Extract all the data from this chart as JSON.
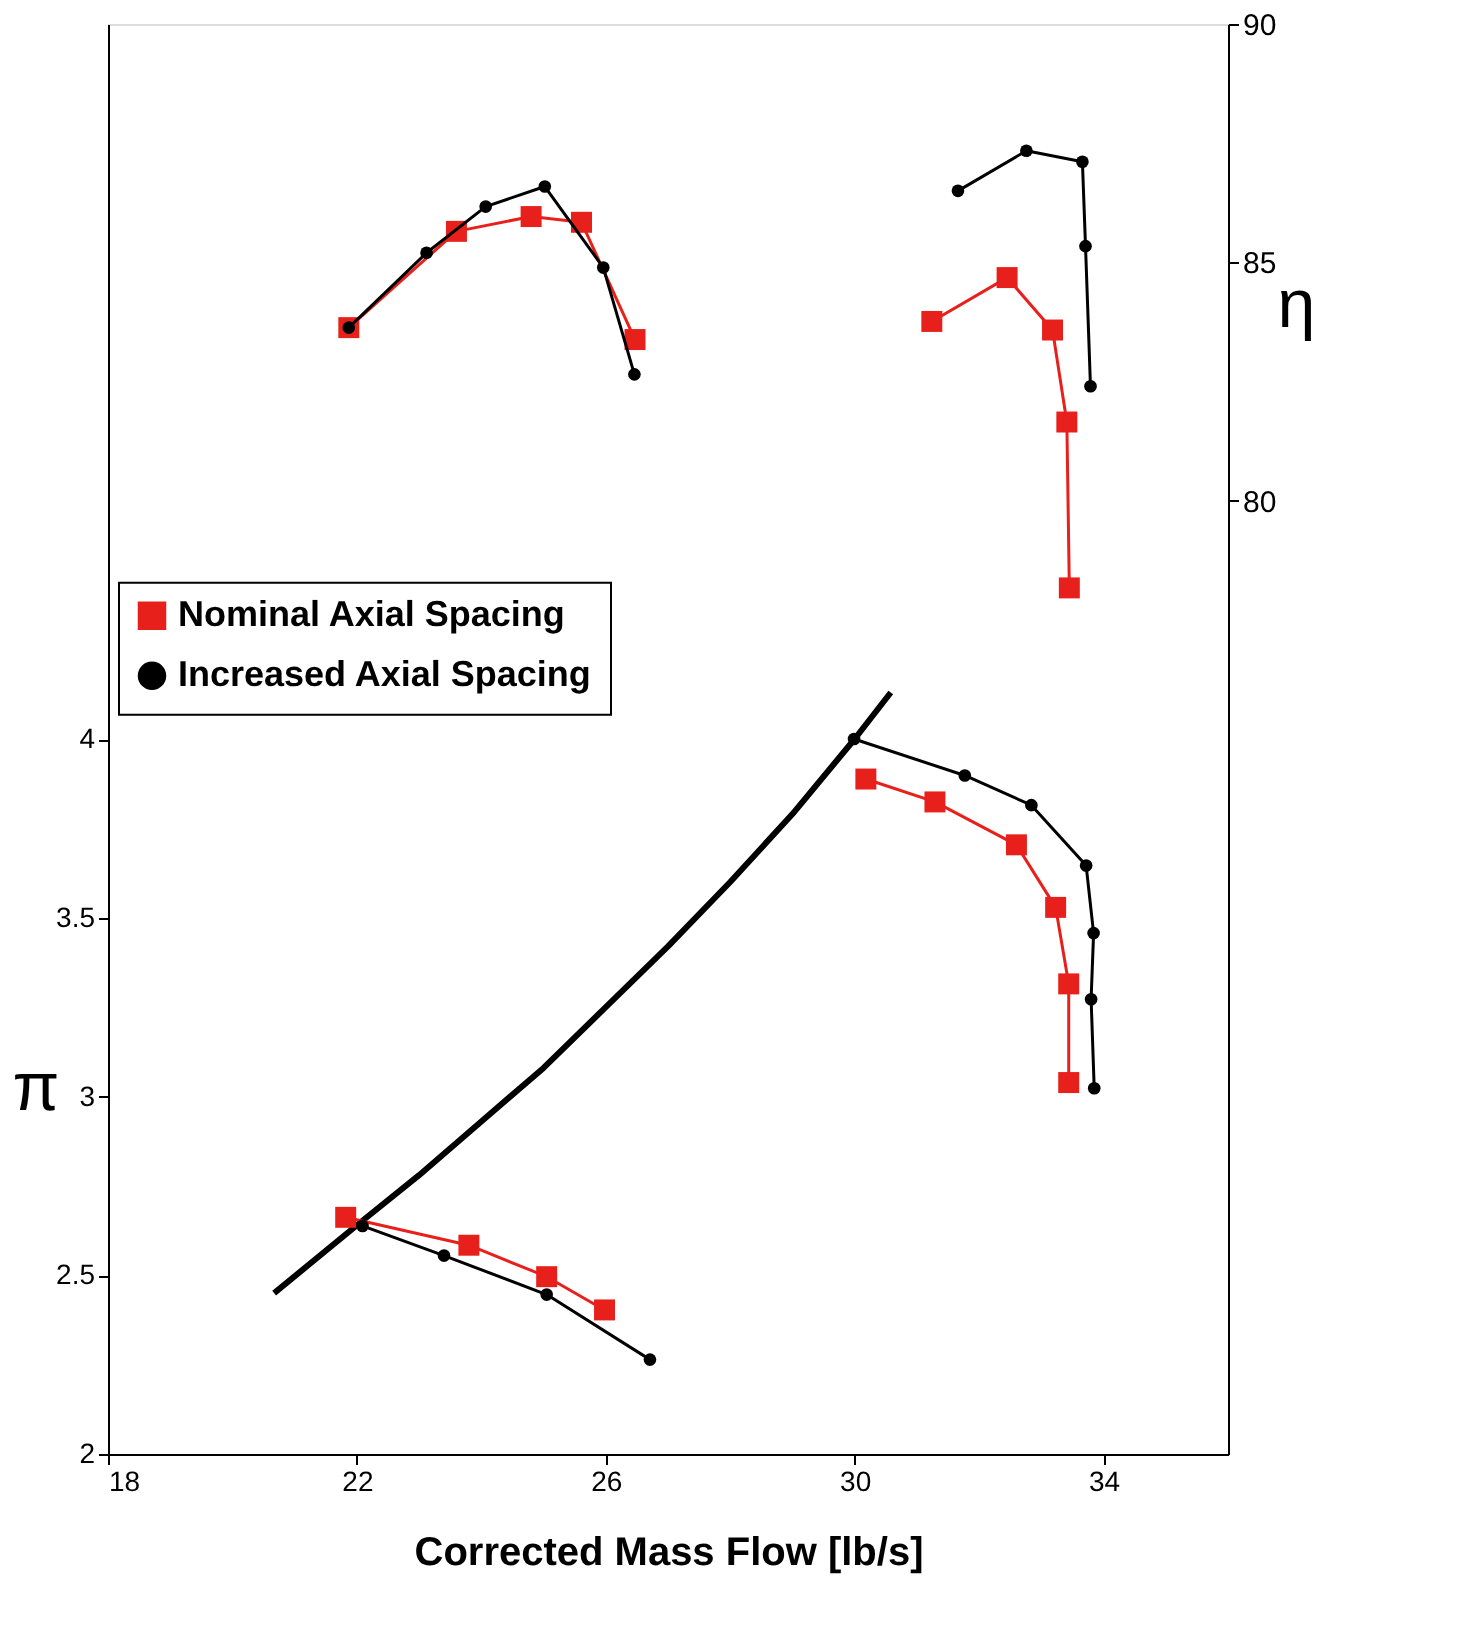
{
  "chart_data": {
    "type": "line",
    "xlabel": "Corrected Mass Flow [lb/s]",
    "ylabel": "π",
    "y2label": "η",
    "xlim": [
      18,
      36
    ],
    "xticks": [
      18,
      22,
      26,
      30,
      34
    ],
    "ylim": [
      2,
      6
    ],
    "yticks": [
      2,
      2.5,
      3,
      3.5,
      4
    ],
    "y2lim": [
      60,
      90
    ],
    "y2ticks": [
      80,
      85,
      90
    ],
    "grid": false,
    "legend": "left",
    "series": [
      {
        "name": "Nominal Axial Spacing",
        "color": "#e8201c",
        "marker": "square",
        "x": [
          21.82,
          23.8,
          25.05,
          25.98
        ],
        "values": [
          2.662,
          2.584,
          2.496,
          2.403
        ]
      },
      {
        "color": "#e8201c",
        "marker": "square",
        "x": [
          30.18,
          31.29,
          32.6,
          33.23,
          33.44,
          33.44
        ],
        "values": [
          3.888,
          3.824,
          3.704,
          3.529,
          3.315,
          3.039
        ]
      },
      {
        "name": "Increased Axial Spacing",
        "color": "#000000",
        "marker": "circle",
        "x": [
          22.09,
          23.4,
          25.05,
          26.71
        ],
        "values": [
          2.638,
          2.555,
          2.446,
          2.264
        ]
      },
      {
        "color": "#000000",
        "marker": "circle",
        "x": [
          29.99,
          31.77,
          32.84,
          33.72,
          33.84,
          33.8,
          33.85
        ],
        "values": [
          4.0,
          3.898,
          3.815,
          3.646,
          3.457,
          3.272,
          3.023
        ]
      },
      {
        "color": "#e8201c",
        "marker": "square",
        "axis": "y2",
        "x": [
          21.87,
          23.6,
          24.8,
          25.61,
          26.47
        ],
        "values": [
          83.63,
          85.65,
          85.96,
          85.84,
          83.38
        ]
      },
      {
        "color": "#e8201c",
        "marker": "square",
        "axis": "y2",
        "x": [
          31.24,
          32.45,
          33.18,
          33.41,
          33.45
        ],
        "values": [
          83.76,
          84.68,
          83.58,
          81.65,
          78.17
        ]
      },
      {
        "color": "#000000",
        "marker": "circle",
        "axis": "y2",
        "x": [
          21.87,
          23.12,
          24.07,
          25.02,
          25.96,
          26.46
        ],
        "values": [
          83.63,
          85.2,
          86.17,
          86.59,
          84.89,
          82.65
        ]
      },
      {
        "color": "#000000",
        "marker": "circle",
        "axis": "y2",
        "x": [
          31.66,
          32.76,
          33.66,
          33.71,
          33.79
        ],
        "values": [
          86.5,
          87.34,
          87.11,
          85.34,
          82.4
        ]
      },
      {
        "color": "#000000",
        "marker": "none",
        "x": [
          20.67,
          22,
          23,
          24,
          25,
          26,
          27,
          28,
          29,
          30,
          30.58
        ],
        "values": [
          2.45,
          2.64,
          2.78,
          2.93,
          3.08,
          3.25,
          3.42,
          3.6,
          3.79,
          4.0,
          4.13
        ]
      }
    ]
  }
}
